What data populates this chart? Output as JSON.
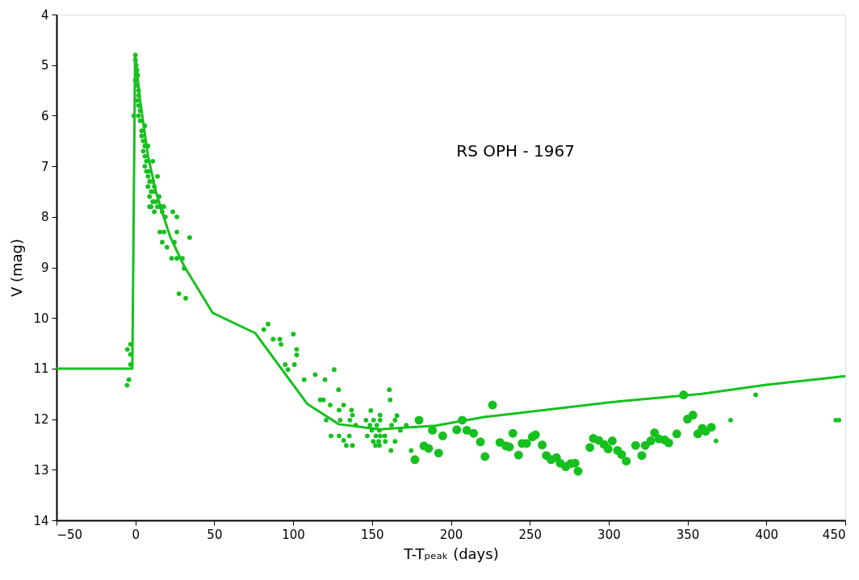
{
  "chart_data": {
    "type": "scatter",
    "xlabel": "T-Tₚₑₐₖ (days)",
    "ylabel": "V (mag)",
    "annotations": [
      "RS OPH - 1967"
    ],
    "xlim": [
      -50,
      450
    ],
    "xticks": [
      -50,
      0,
      50,
      100,
      150,
      200,
      250,
      300,
      350,
      400,
      450
    ],
    "ylim": [
      14,
      4
    ],
    "yticks": [
      4,
      5,
      6,
      7,
      8,
      9,
      10,
      11,
      12,
      13,
      14
    ],
    "grid": false,
    "marker": "circle",
    "series": [
      {
        "type": "line",
        "color": "#16c01e",
        "marker": "none",
        "x": [
          -50,
          -1.9,
          -1.9,
          -0.2,
          3,
          8,
          13,
          16.5,
          22,
          31,
          49,
          76,
          109,
          129,
          155,
          190,
          221,
          303,
          359,
          400,
          450
        ],
        "values": [
          11,
          11,
          10.9,
          4.8,
          5.7,
          6.8,
          7.5,
          7.86,
          8.39,
          8.98,
          9.9,
          10.3,
          11.7,
          12.1,
          12.2,
          12.13,
          11.96,
          11.66,
          11.5,
          11.32,
          11.15
        ]
      },
      {
        "color": "#16c01e",
        "x": [
          -3.1,
          -5.1,
          -3.1,
          -3.1,
          -4.1,
          -5.3,
          0,
          0,
          0.5,
          1,
          1.5,
          0,
          1,
          2,
          2,
          1,
          2,
          3,
          2,
          -1,
          3,
          4,
          4,
          5,
          6,
          5,
          6,
          7,
          6,
          7,
          9,
          8,
          9,
          11,
          8,
          10,
          12,
          9,
          11,
          13,
          10,
          14,
          12,
          16,
          18,
          17,
          19,
          6,
          8,
          11,
          14,
          9,
          12,
          15,
          17,
          23.7,
          26.3,
          15.5,
          18.1,
          26.3,
          34.4,
          17,
          24.7,
          20,
          23,
          26.3,
          29.8,
          30.9,
          27.6,
          31.9,
          81.4,
          84.1,
          87.3,
          91.6,
          92.3,
          100.1,
          102.2,
          102.3,
          95,
          96.7,
          100.8,
          107,
          114,
          120.2,
          126,
          128.8,
          117.2,
          119.2,
          123.5,
          132,
          129.1,
          137,
          137.6,
          136,
          129.8,
          120.9,
          124,
          129.1,
          135.6,
          132,
          133.7,
          137.6,
          139.7,
          146.2,
          151,
          155.1,
          149.2,
          155.1,
          148.7,
          153,
          147,
          149.9,
          154.7,
          152.5,
          155.2,
          158.1,
          150.8,
          154.2,
          158.4,
          152.2,
          154.7,
          161,
          161.5,
          162.4,
          164.6,
          165.8,
          168,
          164.6,
          162,
          171.7,
          174.8,
          368.1,
          377.3,
          393.2,
          444,
          446
        ],
        "values": [
          10.52,
          10.62,
          10.72,
          10.92,
          11.22,
          11.33,
          4.8,
          4.9,
          5.0,
          5.1,
          5.2,
          5.3,
          5.4,
          5.5,
          5.6,
          5.7,
          5.8,
          5.9,
          6.0,
          6.0,
          6.1,
          6.3,
          6.4,
          6.5,
          6.6,
          6.7,
          6.8,
          6.9,
          7.0,
          7.1,
          7.1,
          7.2,
          7.3,
          7.3,
          7.4,
          7.5,
          7.5,
          7.6,
          7.7,
          7.7,
          7.8,
          7.8,
          7.9,
          7.8,
          7.8,
          7.9,
          8.0,
          6.2,
          6.6,
          6.9,
          7.2,
          7.8,
          7.4,
          7.6,
          7.8,
          7.9,
          8.0,
          8.3,
          8.3,
          8.3,
          8.41,
          8.5,
          8.5,
          8.6,
          8.82,
          8.82,
          8.82,
          9.02,
          9.52,
          9.61,
          10.23,
          10.12,
          10.42,
          10.42,
          10.52,
          10.32,
          10.62,
          10.73,
          10.92,
          11.02,
          10.92,
          11.22,
          11.12,
          11.22,
          11.02,
          11.42,
          11.62,
          11.62,
          11.72,
          11.72,
          11.82,
          11.82,
          11.92,
          12.02,
          12.02,
          12.02,
          12.33,
          12.33,
          12.33,
          12.42,
          12.52,
          12.52,
          12.12,
          12.02,
          12.02,
          12.02,
          11.83,
          11.92,
          12.12,
          12.12,
          12.33,
          12.22,
          12.22,
          12.33,
          12.33,
          12.33,
          12.44,
          12.44,
          12.44,
          12.52,
          12.52,
          11.42,
          11.62,
          12.12,
          12.02,
          11.93,
          12.22,
          12.44,
          12.62,
          12.12,
          12.62,
          12.43,
          12.02,
          11.52,
          12.02,
          12.02
        ]
      },
      {
        "color": "#16c01e",
        "x": [
          179.8,
          177.2,
          182.9,
          185.9,
          188.3,
          194.8,
          192.2,
          203.7,
          207.2,
          210.1,
          214.4,
          218.7,
          221.6,
          226.4,
          231.1,
          234.9,
          237.1,
          239.3,
          242.9,
          245.1,
          248,
          251.6,
          253.6,
          257.9,
          260.5,
          263.5,
          266.9,
          269.3,
          272.8,
          275.8,
          278.7,
          280.6,
          288.1,
          290.3,
          293.7,
          297.1,
          299.7,
          302.3,
          305.7,
          308.2,
          311.2,
          317.1,
          321,
          323.2,
          326.7,
          329.1,
          331.8,
          335.5,
          338.1,
          343.2,
          347.5,
          350,
          353.4,
          356.5,
          359.4,
          361.5,
          365.1
        ],
        "values": [
          12.02,
          12.8,
          12.53,
          12.58,
          12.22,
          12.33,
          12.67,
          12.21,
          12.02,
          12.22,
          12.28,
          12.45,
          12.74,
          11.72,
          12.46,
          12.53,
          12.55,
          12.28,
          12.71,
          12.48,
          12.48,
          12.35,
          12.31,
          12.51,
          12.72,
          12.8,
          12.76,
          12.87,
          12.94,
          12.88,
          12.87,
          13.03,
          12.56,
          12.38,
          12.42,
          12.5,
          12.59,
          12.43,
          12.62,
          12.7,
          12.83,
          12.52,
          12.72,
          12.52,
          12.43,
          12.27,
          12.39,
          12.41,
          12.47,
          12.29,
          11.52,
          12.0,
          11.92,
          12.29,
          12.18,
          12.24,
          12.16
        ]
      }
    ]
  }
}
